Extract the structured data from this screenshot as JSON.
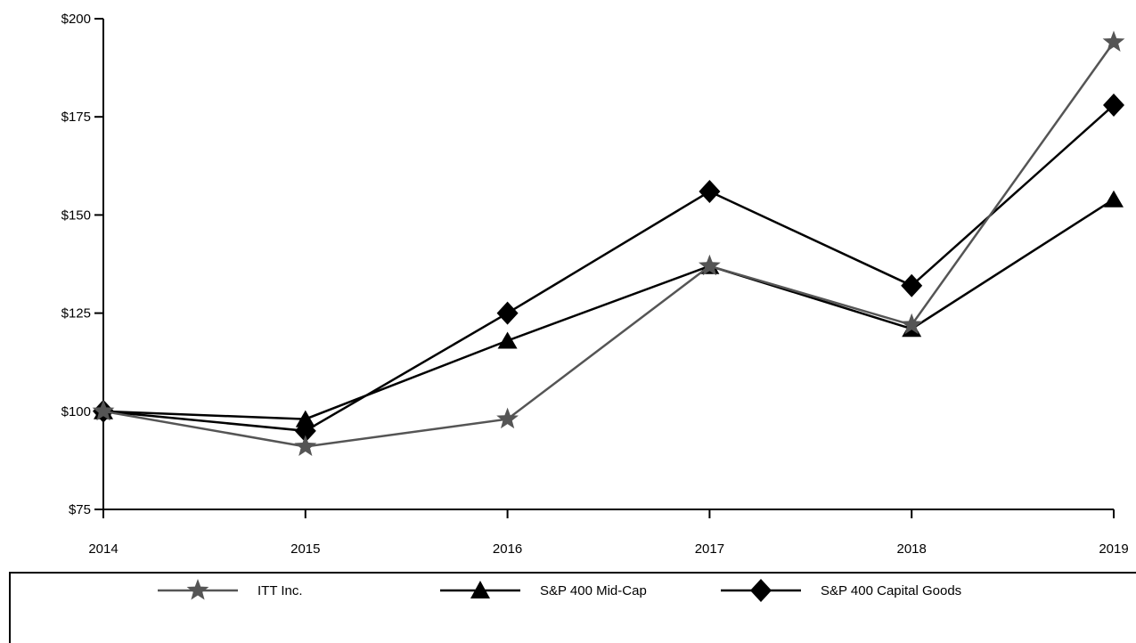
{
  "chart_data": {
    "type": "line",
    "title": "",
    "xlabel": "",
    "ylabel": "",
    "x": [
      "2014",
      "2015",
      "2016",
      "2017",
      "2018",
      "2019"
    ],
    "ylim": [
      75,
      200
    ],
    "yticks": [
      "$75",
      "$100",
      "$125",
      "$150",
      "$175",
      "$200"
    ],
    "grid": false,
    "legend_position": "bottom",
    "series": [
      {
        "name": "ITT Inc.",
        "values": [
          100,
          91,
          98,
          137,
          122,
          194
        ],
        "color": "#555555",
        "marker": "star"
      },
      {
        "name": "S&P 400 Mid-Cap",
        "values": [
          100,
          98,
          118,
          137,
          121,
          154
        ],
        "color": "#000000",
        "marker": "triangle"
      },
      {
        "name": "S&P 400 Capital Goods",
        "values": [
          100,
          95,
          125,
          156,
          132,
          178
        ],
        "color": "#000000",
        "marker": "diamond"
      }
    ]
  }
}
